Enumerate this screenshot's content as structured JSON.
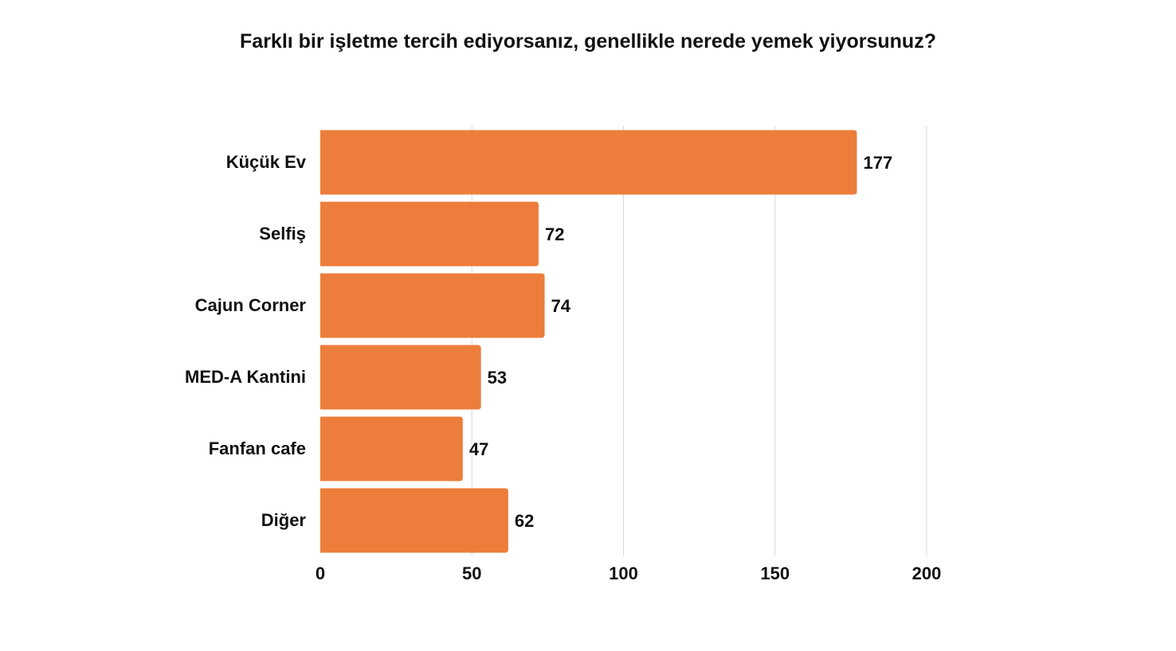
{
  "chart_data": {
    "type": "bar",
    "orientation": "horizontal",
    "title": "Farklı bir işletme tercih ediyorsanız, genellikle nerede yemek yiyorsunuz?",
    "categories": [
      "Küçük Ev",
      "Selfiş",
      "Cajun Corner",
      "MED-A Kantini",
      "Fanfan cafe",
      "Diğer"
    ],
    "values": [
      177,
      72,
      74,
      53,
      47,
      62
    ],
    "data_labels": [
      "177",
      "72",
      "74",
      "53",
      "47",
      "62"
    ],
    "xlim": [
      0,
      200
    ],
    "x_ticks": [
      0,
      50,
      100,
      150,
      200
    ],
    "x_tick_labels": [
      "0",
      "50",
      "100",
      "150",
      "200"
    ],
    "xlabel": "",
    "ylabel": "",
    "grid": "vertical",
    "legend": "none",
    "colors": {
      "bar": "#ed7d3a",
      "grid": "#d9d9d9",
      "text": "#111111"
    }
  }
}
